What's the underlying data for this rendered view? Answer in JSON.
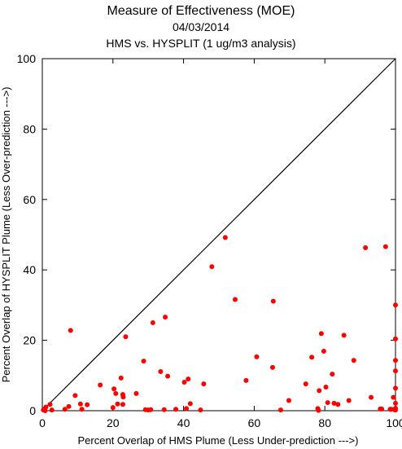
{
  "chart_data": {
    "type": "scatter",
    "title": "Measure of Effectiveness (MOE)",
    "subtitle_date": "04/03/2014",
    "subtitle_analysis": "HMS vs. HYSPLIT  (1 ug/m3 analysis)",
    "xlabel": "Percent Overlap of HMS Plume (Less Under-prediction --->)",
    "ylabel": "Percent Overlap of HYSPLIT Plume (Less Over-prediction --->)",
    "xlim": [
      0,
      100
    ],
    "ylim": [
      0,
      100
    ],
    "xticks": [
      "0",
      "20",
      "40",
      "60",
      "80",
      "100"
    ],
    "yticks": [
      "0",
      "20",
      "40",
      "60",
      "80",
      "100"
    ],
    "reference_line": "y = x",
    "marker_color": "#ff0000",
    "line_color": "#000000",
    "grid": false,
    "points": [
      [
        0.3,
        0.2
      ],
      [
        0.6,
        0.5
      ],
      [
        1.0,
        1.0
      ],
      [
        0.8,
        0.0
      ],
      [
        2.2,
        1.8
      ],
      [
        2.7,
        0.2
      ],
      [
        6.4,
        0.4
      ],
      [
        7.5,
        1.2
      ],
      [
        8.0,
        22.8
      ],
      [
        9.3,
        4.3
      ],
      [
        10.8,
        1.9
      ],
      [
        11.2,
        0.4
      ],
      [
        12.7,
        1.7
      ],
      [
        16.4,
        7.3
      ],
      [
        20.0,
        0.9
      ],
      [
        20.3,
        6.2
      ],
      [
        20.8,
        4.9
      ],
      [
        21.3,
        1.9
      ],
      [
        22.3,
        9.3
      ],
      [
        22.8,
        4.6
      ],
      [
        22.8,
        1.8
      ],
      [
        22.9,
        3.9
      ],
      [
        23.6,
        21.0
      ],
      [
        26.6,
        4.9
      ],
      [
        28.7,
        14.1
      ],
      [
        29.2,
        0.3
      ],
      [
        30.0,
        0.2
      ],
      [
        30.7,
        0.3
      ],
      [
        31.3,
        25.0
      ],
      [
        33.5,
        11.1
      ],
      [
        34.5,
        0.3
      ],
      [
        34.8,
        26.6
      ],
      [
        35.5,
        9.8
      ],
      [
        37.8,
        0.4
      ],
      [
        40.2,
        8.1
      ],
      [
        40.8,
        0.6
      ],
      [
        41.3,
        9.0
      ],
      [
        41.9,
        2.0
      ],
      [
        44.8,
        0.2
      ],
      [
        45.7,
        7.6
      ],
      [
        48.0,
        40.9
      ],
      [
        51.8,
        49.2
      ],
      [
        54.6,
        31.6
      ],
      [
        57.7,
        8.6
      ],
      [
        60.7,
        15.3
      ],
      [
        65.2,
        12.3
      ],
      [
        65.4,
        31.1
      ],
      [
        67.5,
        0.2
      ],
      [
        69.8,
        2.9
      ],
      [
        74.6,
        7.6
      ],
      [
        76.3,
        15.2
      ],
      [
        78.0,
        0.6
      ],
      [
        78.2,
        0.1
      ],
      [
        78.4,
        5.7
      ],
      [
        79.0,
        21.9
      ],
      [
        79.7,
        16.9
      ],
      [
        80.3,
        6.7
      ],
      [
        80.8,
        2.3
      ],
      [
        82.1,
        10.4
      ],
      [
        82.6,
        2.1
      ],
      [
        83.7,
        1.8
      ],
      [
        85.4,
        21.4
      ],
      [
        86.8,
        2.9
      ],
      [
        88.2,
        14.3
      ],
      [
        91.5,
        46.3
      ],
      [
        93.1,
        3.8
      ],
      [
        95.7,
        0.5
      ],
      [
        96.1,
        0.5
      ],
      [
        97.2,
        46.6
      ],
      [
        98.5,
        0.4
      ],
      [
        98.8,
        0.4
      ],
      [
        99.4,
        3.8
      ],
      [
        99.8,
        0.3
      ],
      [
        99.9,
        0.2
      ],
      [
        100.0,
        6.4
      ],
      [
        100.0,
        11.3
      ],
      [
        100.0,
        14.3
      ],
      [
        100.0,
        20.4
      ],
      [
        100.0,
        30.0
      ],
      [
        100.0,
        2.1
      ],
      [
        100.0,
        0.2
      ],
      [
        100.0,
        0.7
      ]
    ]
  }
}
